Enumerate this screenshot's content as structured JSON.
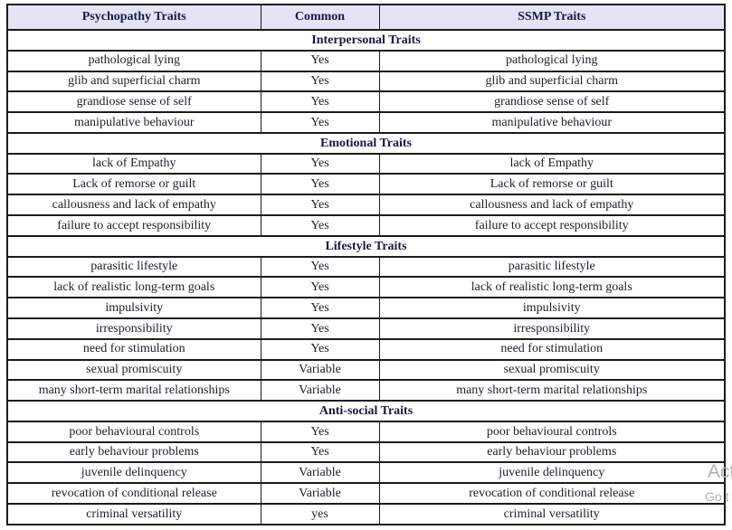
{
  "table": {
    "headers": [
      "Psychopathy Traits",
      "Common",
      "SSMP Traits"
    ],
    "sections": [
      {
        "title": "Interpersonal Traits",
        "rows": [
          [
            "pathological lying",
            "Yes",
            "pathological lying"
          ],
          [
            "glib and superficial charm",
            "Yes",
            "glib and superficial charm"
          ],
          [
            "grandiose sense of self",
            "Yes",
            "grandiose sense of self"
          ],
          [
            "manipulative behaviour",
            "Yes",
            "manipulative behaviour"
          ]
        ]
      },
      {
        "title": "Emotional Traits",
        "rows": [
          [
            "lack of Empathy",
            "Yes",
            "lack of Empathy"
          ],
          [
            "Lack of remorse or guilt",
            "Yes",
            "Lack of remorse or guilt"
          ],
          [
            "callousness and lack of empathy",
            "Yes",
            "callousness and lack of empathy"
          ],
          [
            "failure to accept responsibility",
            "Yes",
            "failure to accept responsibility"
          ]
        ]
      },
      {
        "title": "Lifestyle Traits",
        "rows": [
          [
            "parasitic lifestyle",
            "Yes",
            "parasitic lifestyle"
          ],
          [
            "lack of realistic long-term goals",
            "Yes",
            "lack of realistic long-term goals"
          ],
          [
            "impulsivity",
            "Yes",
            "impulsivity"
          ],
          [
            "irresponsibility",
            "Yes",
            "irresponsibility"
          ],
          [
            "need for stimulation",
            "Yes",
            "need for stimulation"
          ],
          [
            "sexual promiscuity",
            "Variable",
            "sexual promiscuity"
          ],
          [
            "many short-term marital relationships",
            "Variable",
            "many short-term marital relationships"
          ]
        ]
      },
      {
        "title": "Anti-social Traits",
        "rows": [
          [
            "poor behavioural controls",
            "Yes",
            "poor behavioural controls"
          ],
          [
            "early behaviour problems",
            "Yes",
            "early behaviour problems"
          ],
          [
            "juvenile delinquency",
            "Variable",
            "juvenile delinquency"
          ],
          [
            "revocation of conditional release",
            "Variable",
            "revocation of conditional release"
          ],
          [
            "criminal versatility",
            "yes",
            "criminal versatility"
          ]
        ]
      }
    ]
  },
  "watermark": {
    "line1": "Act",
    "line2": "Go t"
  },
  "colors": {
    "header_background": "#e4e4f6",
    "border": "#1b1b1b",
    "header_text": "#18184a",
    "body_text": "#1e1e30",
    "watermark_text": "#b2b2b2"
  }
}
